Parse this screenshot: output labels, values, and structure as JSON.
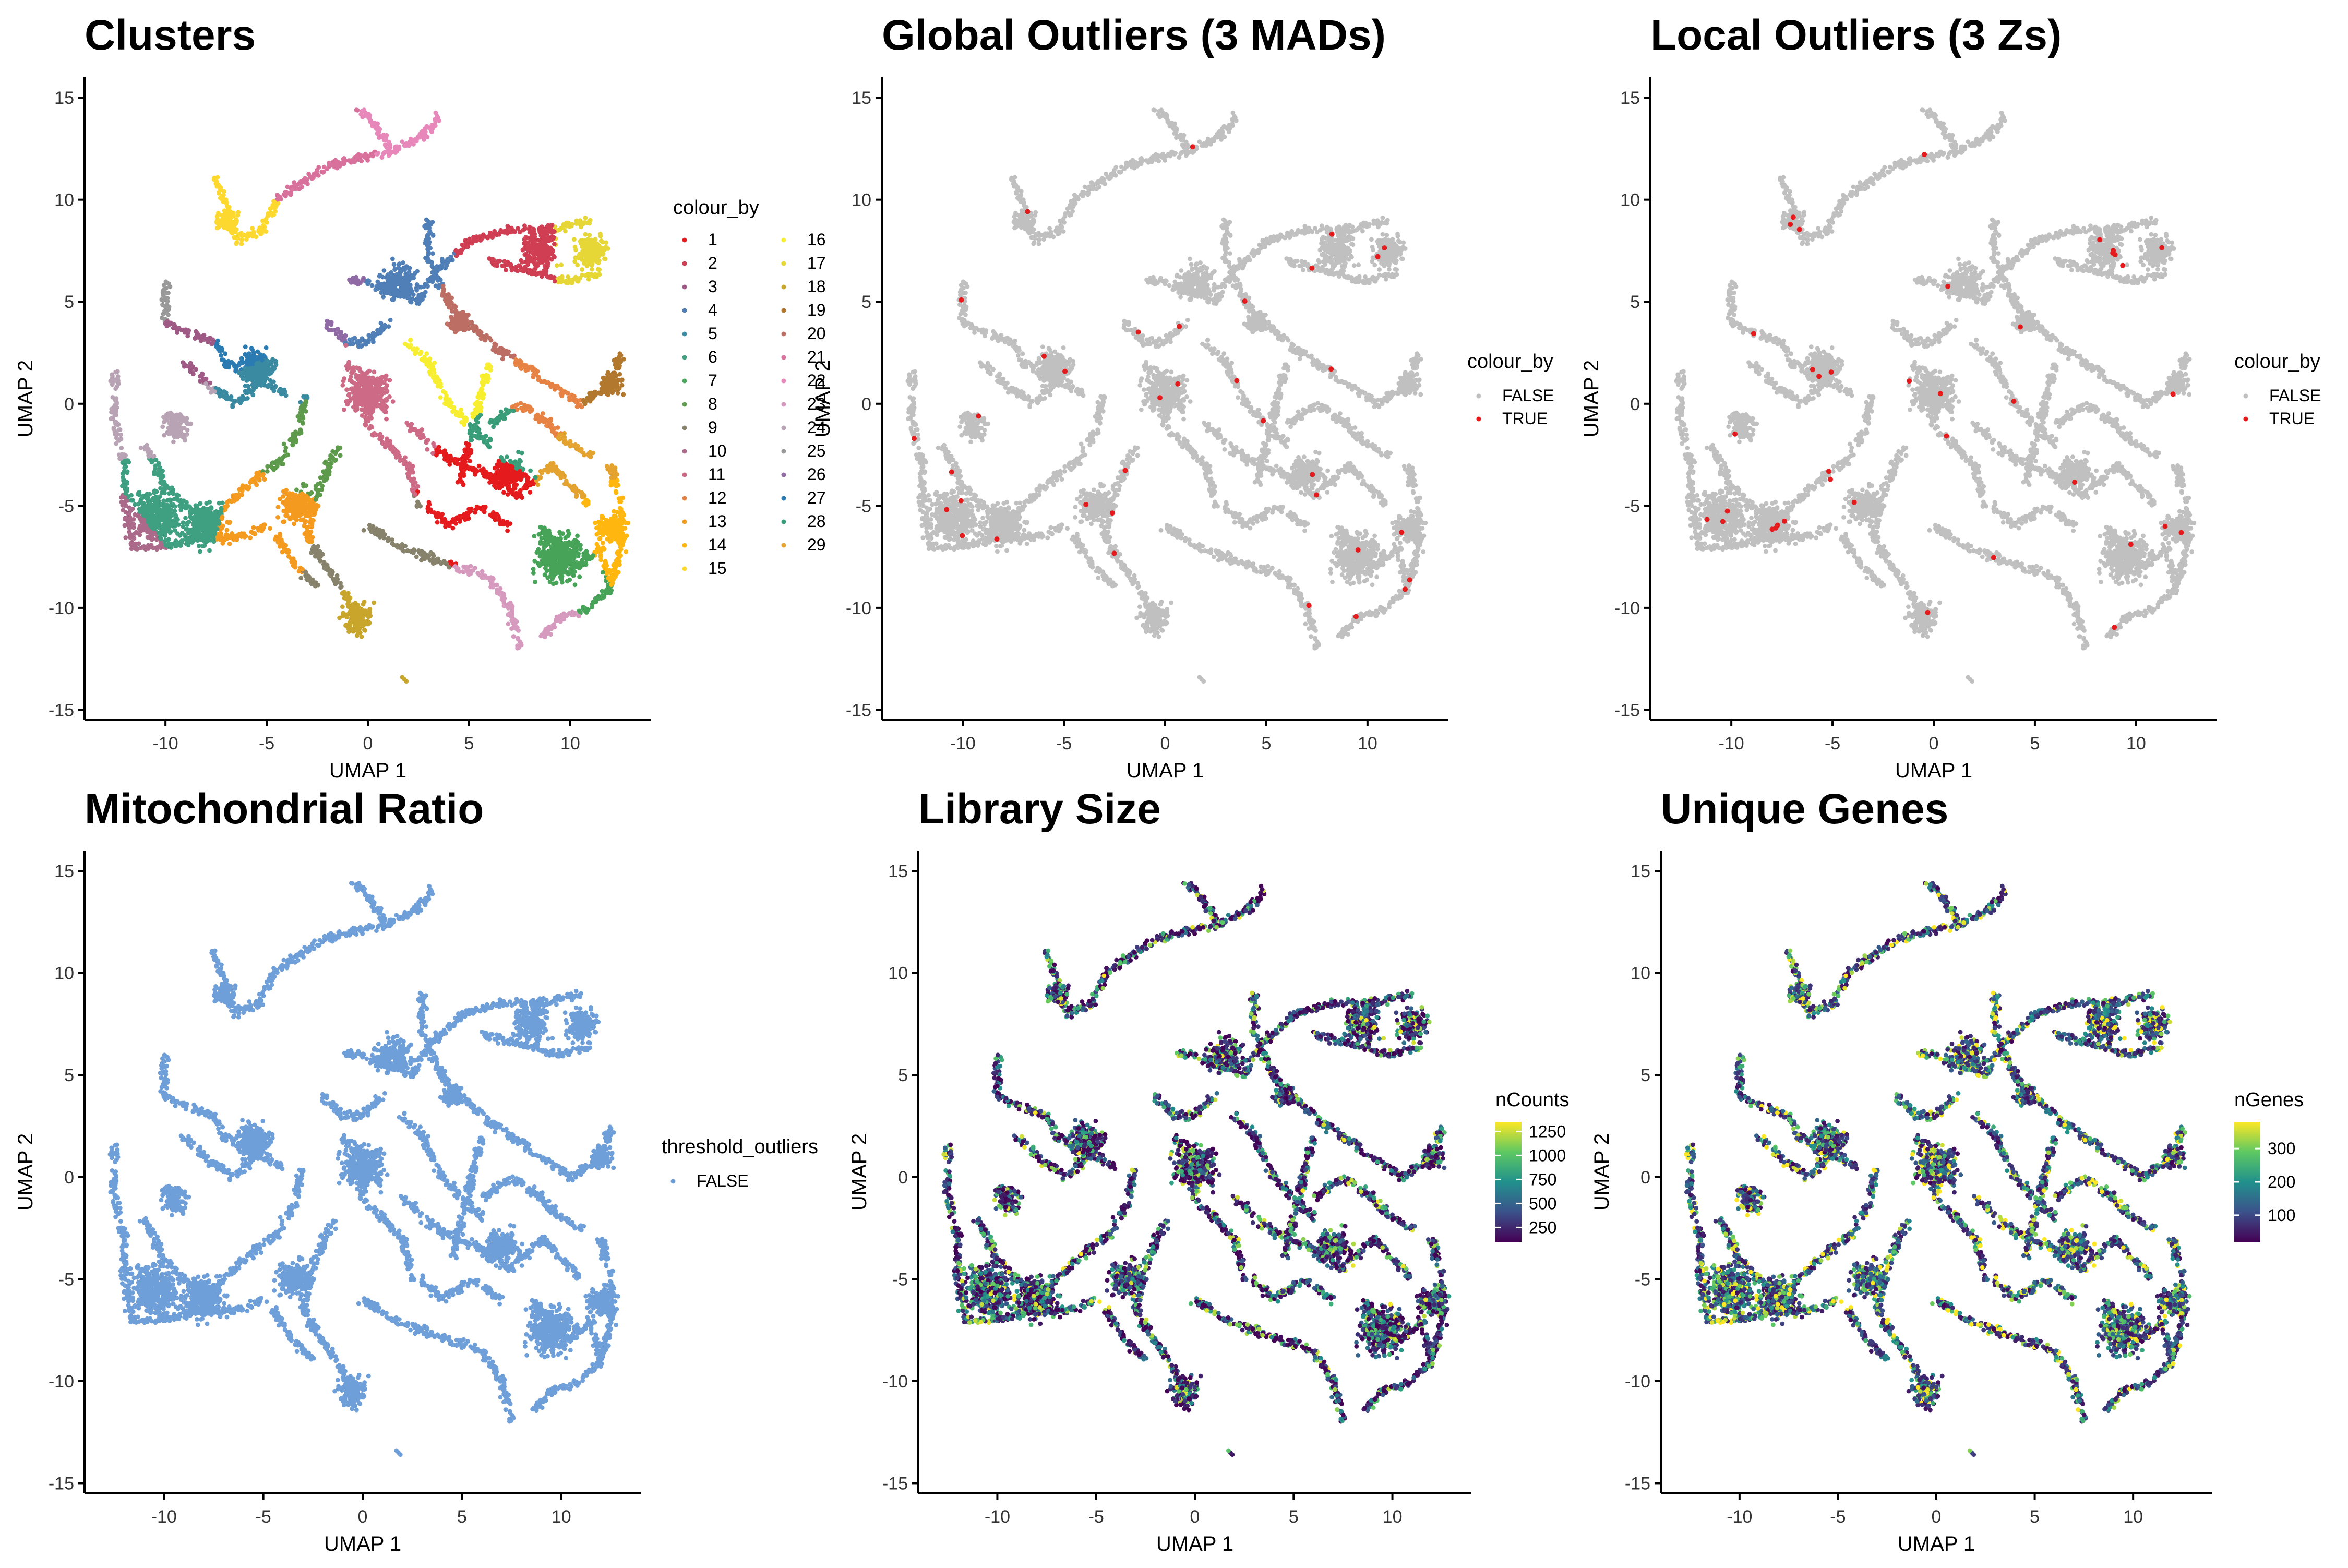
{
  "figure": {
    "panels": [
      {
        "id": "clusters",
        "title": "Clusters"
      },
      {
        "id": "global",
        "title": "Global Outliers (3 MADs)"
      },
      {
        "id": "local",
        "title": "Local Outliers (3 Zs)"
      },
      {
        "id": "mito",
        "title": "Mitochondrial Ratio"
      },
      {
        "id": "libsize",
        "title": "Library Size"
      },
      {
        "id": "genes",
        "title": "Unique Genes"
      }
    ],
    "xlabel": "UMAP 1",
    "ylabel": "UMAP 2",
    "x_ticks": [
      "-10",
      "-5",
      "0",
      "5",
      "10"
    ],
    "y_ticks": [
      "15",
      "10",
      "5",
      "0",
      "-5",
      "-10",
      "-15"
    ],
    "legends": {
      "clusters": {
        "title": "colour_by",
        "labels": [
          "1",
          "2",
          "3",
          "4",
          "5",
          "6",
          "7",
          "8",
          "9",
          "10",
          "11",
          "12",
          "13",
          "14",
          "15",
          "16",
          "17",
          "18",
          "19",
          "20",
          "21",
          "22",
          "23",
          "24",
          "25",
          "26",
          "27",
          "28",
          "29"
        ]
      },
      "global": {
        "title": "colour_by",
        "labels": [
          "FALSE",
          "TRUE"
        ]
      },
      "local": {
        "title": "colour_by",
        "labels": [
          "FALSE",
          "TRUE"
        ]
      },
      "mito": {
        "title": "threshold_outliers",
        "labels": [
          "FALSE"
        ]
      },
      "libsize": {
        "title": "nCounts",
        "labels": [
          "1250",
          "1000",
          "750",
          "500",
          "250"
        ]
      },
      "genes": {
        "title": "nGenes",
        "labels": [
          "300",
          "200",
          "100"
        ]
      }
    },
    "colors": {
      "outlier_false": "#c0c0c0",
      "outlier_true": "#e41a1c",
      "mito_false": "#6f9fd8",
      "viridis": [
        "#440154",
        "#3b528b",
        "#21918c",
        "#5ec962",
        "#fde725"
      ],
      "clusters": [
        "#e41a1c",
        "#cf3e53",
        "#9e5a85",
        "#4f7fb6",
        "#3a8aa2",
        "#3f9f81",
        "#46a358",
        "#5e9a4c",
        "#86826c",
        "#ac6a8b",
        "#cd6a86",
        "#e68344",
        "#f49a1f",
        "#ffb60f",
        "#fdd92f",
        "#f8ee30",
        "#e6d737",
        "#c8a52b",
        "#b2782e",
        "#bd6e64",
        "#d9719d",
        "#e787ba",
        "#d69abf",
        "#b8a3b5",
        "#999999",
        "#8f6aa5",
        "#2b7bb3",
        "#3a9d7a",
        "#e3a32e"
      ]
    }
  },
  "chart_data": [
    {
      "type": "scatter",
      "title": "Clusters",
      "xlabel": "UMAP 1",
      "ylabel": "UMAP 2",
      "xlim": [
        -14,
        14
      ],
      "ylim": [
        -15.5,
        16
      ],
      "grid": false,
      "legend": {
        "title": "colour_by",
        "placement": "right"
      },
      "series": [
        {
          "name": "1",
          "x_center": 6.5,
          "y_center": -4.0
        },
        {
          "name": "2",
          "x_center": 7.5,
          "y_center": 7.5
        },
        {
          "name": "3",
          "x_center": -9.0,
          "y_center": 3.0
        },
        {
          "name": "4",
          "x_center": 1.5,
          "y_center": 6.0
        },
        {
          "name": "5",
          "x_center": -5.0,
          "y_center": 1.0
        },
        {
          "name": "6",
          "x_center": -9.5,
          "y_center": -5.0
        },
        {
          "name": "7",
          "x_center": 9.5,
          "y_center": -7.5
        },
        {
          "name": "8",
          "x_center": -3.0,
          "y_center": -2.0
        },
        {
          "name": "9",
          "x_center": -0.5,
          "y_center": -7.5
        },
        {
          "name": "10",
          "x_center": -12.0,
          "y_center": -7.0
        },
        {
          "name": "11",
          "x_center": 0.0,
          "y_center": -1.0
        },
        {
          "name": "12",
          "x_center": 9.0,
          "y_center": 0.0
        },
        {
          "name": "13",
          "x_center": -5.0,
          "y_center": -6.0
        },
        {
          "name": "14",
          "x_center": 12.0,
          "y_center": -6.0
        },
        {
          "name": "15",
          "x_center": -7.0,
          "y_center": 9.0
        },
        {
          "name": "16",
          "x_center": 4.0,
          "y_center": 1.5
        },
        {
          "name": "17",
          "x_center": 11.0,
          "y_center": 7.5
        },
        {
          "name": "18",
          "x_center": -0.5,
          "y_center": -10.5
        },
        {
          "name": "19",
          "x_center": 12.0,
          "y_center": 1.0
        },
        {
          "name": "20",
          "x_center": 5.0,
          "y_center": 4.0
        },
        {
          "name": "21",
          "x_center": -2.0,
          "y_center": 11.0
        },
        {
          "name": "22",
          "x_center": 3.0,
          "y_center": 13.0
        },
        {
          "name": "23",
          "x_center": 7.5,
          "y_center": -11.0
        },
        {
          "name": "24",
          "x_center": -10.0,
          "y_center": 0.0
        },
        {
          "name": "25",
          "x_center": -10.0,
          "y_center": 5.5
        },
        {
          "name": "26",
          "x_center": -1.5,
          "y_center": 7.0
        },
        {
          "name": "27",
          "x_center": -6.0,
          "y_center": 3.0
        },
        {
          "name": "28",
          "x_center": 7.5,
          "y_center": -2.0
        },
        {
          "name": "29",
          "x_center": 10.0,
          "y_center": -3.0
        }
      ]
    },
    {
      "type": "scatter",
      "title": "Global Outliers (3 MADs)",
      "xlabel": "UMAP 1",
      "ylabel": "UMAP 2",
      "xlim": [
        -14,
        14
      ],
      "ylim": [
        -15.5,
        16
      ],
      "grid": false,
      "legend": {
        "title": "colour_by",
        "placement": "right"
      },
      "series": [
        {
          "name": "FALSE",
          "color": "#c0c0c0"
        },
        {
          "name": "TRUE",
          "color": "#e41a1c",
          "approx_count": 30
        }
      ]
    },
    {
      "type": "scatter",
      "title": "Local Outliers (3 Zs)",
      "xlabel": "UMAP 1",
      "ylabel": "UMAP 2",
      "xlim": [
        -14,
        14
      ],
      "ylim": [
        -15.5,
        16
      ],
      "grid": false,
      "legend": {
        "title": "colour_by",
        "placement": "right"
      },
      "series": [
        {
          "name": "FALSE",
          "color": "#c0c0c0"
        },
        {
          "name": "TRUE",
          "color": "#e41a1c",
          "approx_count": 45
        }
      ]
    },
    {
      "type": "scatter",
      "title": "Mitochondrial Ratio",
      "xlabel": "UMAP 1",
      "ylabel": "UMAP 2",
      "xlim": [
        -14,
        14
      ],
      "ylim": [
        -15.5,
        16
      ],
      "grid": false,
      "legend": {
        "title": "threshold_outliers",
        "placement": "right"
      },
      "series": [
        {
          "name": "FALSE",
          "color": "#6f9fd8"
        }
      ]
    },
    {
      "type": "scatter",
      "title": "Library Size",
      "xlabel": "UMAP 1",
      "ylabel": "UMAP 2",
      "xlim": [
        -14,
        14
      ],
      "ylim": [
        -15.5,
        16
      ],
      "grid": false,
      "legend": {
        "title": "nCounts",
        "placement": "right"
      },
      "color_scale": {
        "type": "viridis",
        "range": [
          100,
          1350
        ],
        "ticks": [
          250,
          500,
          750,
          1000,
          1250
        ]
      }
    },
    {
      "type": "scatter",
      "title": "Unique Genes",
      "xlabel": "UMAP 1",
      "ylabel": "UMAP 2",
      "xlim": [
        -14,
        14
      ],
      "ylim": [
        -15.5,
        16
      ],
      "grid": false,
      "legend": {
        "title": "nGenes",
        "placement": "right"
      },
      "color_scale": {
        "type": "viridis",
        "range": [
          20,
          380
        ],
        "ticks": [
          100,
          200,
          300
        ]
      }
    }
  ]
}
